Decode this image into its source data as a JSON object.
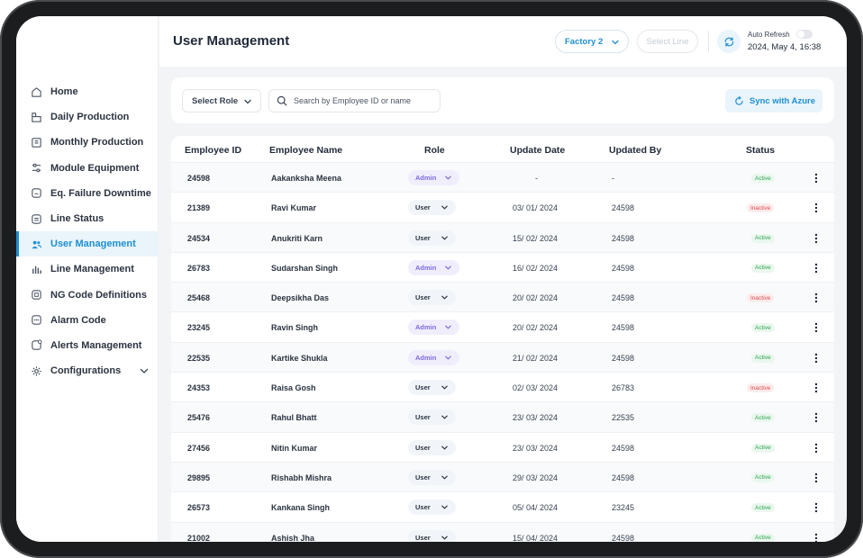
{
  "page_title": "User Management",
  "sidebar": {
    "items": [
      {
        "label": "Home",
        "icon": "home-icon"
      },
      {
        "label": "Daily Production",
        "icon": "daily-production-icon"
      },
      {
        "label": "Monthly Production",
        "icon": "monthly-production-icon"
      },
      {
        "label": "Module Equipment",
        "icon": "equipment-icon"
      },
      {
        "label": "Eq. Failure Downtime",
        "icon": "failure-icon"
      },
      {
        "label": "Line Status",
        "icon": "line-status-icon"
      },
      {
        "label": "User Management",
        "icon": "users-icon",
        "active": true
      },
      {
        "label": "Line Management",
        "icon": "bar-chart-icon"
      },
      {
        "label": "NG Code Definitions",
        "icon": "code-icon"
      },
      {
        "label": "Alarm Code",
        "icon": "alarm-icon"
      },
      {
        "label": "Alerts Management",
        "icon": "alert-icon"
      },
      {
        "label": "Configurations",
        "icon": "gear-icon"
      }
    ]
  },
  "header": {
    "factory": "Factory 2",
    "line_placeholder": "Select Line",
    "auto_refresh_label": "Auto Refresh",
    "datetime": "2024, May 4, 16:38"
  },
  "filters": {
    "role_label": "Select Role",
    "search_placeholder": "Search by Employee ID or name",
    "sync_label": "Sync with Azure"
  },
  "table": {
    "columns": [
      "Employee ID",
      "Employee Name",
      "Role",
      "Update Date",
      "Updated By",
      "Status"
    ],
    "rows": [
      {
        "id": "24598",
        "name": "Aakanksha Meena",
        "role": "Admin",
        "date": "-",
        "by": "-",
        "status": "Active"
      },
      {
        "id": "21389",
        "name": "Ravi Kumar",
        "role": "User",
        "date": "03/ 01/ 2024",
        "by": "24598",
        "status": "Inactive"
      },
      {
        "id": "24534",
        "name": "Anukriti Karn",
        "role": "User",
        "date": "15/ 02/ 2024",
        "by": "24598",
        "status": "Active"
      },
      {
        "id": "26783",
        "name": "Sudarshan Singh",
        "role": "Admin",
        "date": "16/ 02/ 2024",
        "by": "24598",
        "status": "Active"
      },
      {
        "id": "25468",
        "name": "Deepsikha Das",
        "role": "User",
        "date": "20/ 02/ 2024",
        "by": "24598",
        "status": "Inactive"
      },
      {
        "id": "23245",
        "name": "Ravin Singh",
        "role": "Admin",
        "date": "20/ 02/ 2024",
        "by": "24598",
        "status": "Active"
      },
      {
        "id": "22535",
        "name": "Kartike Shukla",
        "role": "Admin",
        "date": "21/ 02/ 2024",
        "by": "24598",
        "status": "Active"
      },
      {
        "id": "24353",
        "name": "Raisa Gosh",
        "role": "User",
        "date": "02/ 03/ 2024",
        "by": "26783",
        "status": "Inactive"
      },
      {
        "id": "25476",
        "name": "Rahul Bhatt",
        "role": "User",
        "date": "23/ 03/ 2024",
        "by": "22535",
        "status": "Active"
      },
      {
        "id": "27456",
        "name": "Nitin Kumar",
        "role": "User",
        "date": "23/ 03/ 2024",
        "by": "24598",
        "status": "Active"
      },
      {
        "id": "29895",
        "name": "Rishabh Mishra",
        "role": "User",
        "date": "29/ 03/ 2024",
        "by": "24598",
        "status": "Active"
      },
      {
        "id": "26573",
        "name": "Kankana Singh",
        "role": "User",
        "date": "05/ 04/ 2024",
        "by": "23245",
        "status": "Active"
      },
      {
        "id": "21002",
        "name": "Ashish Jha",
        "role": "User",
        "date": "15/ 04/ 2024",
        "by": "24598",
        "status": "Active"
      }
    ]
  },
  "colors": {
    "accent": "#1d8fd2",
    "admin": "#7c6ce0",
    "active": "#2ea44f",
    "inactive": "#e0494b"
  }
}
